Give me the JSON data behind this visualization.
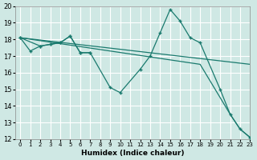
{
  "xlabel": "Humidex (Indice chaleur)",
  "xlim": [
    -0.5,
    23
  ],
  "ylim": [
    12,
    20
  ],
  "yticks": [
    12,
    13,
    14,
    15,
    16,
    17,
    18,
    19,
    20
  ],
  "xticks": [
    0,
    1,
    2,
    3,
    4,
    5,
    6,
    7,
    8,
    9,
    10,
    11,
    12,
    13,
    14,
    15,
    16,
    17,
    18,
    19,
    20,
    21,
    22,
    23
  ],
  "bg_color": "#cfe8e4",
  "grid_color": "#ffffff",
  "line_color": "#1a7a6e",
  "line1_x": [
    0,
    1,
    2,
    3,
    4,
    5,
    6,
    7
  ],
  "line1_y": [
    18.1,
    17.3,
    17.6,
    17.7,
    17.8,
    18.2,
    17.2,
    17.2
  ],
  "line2_x": [
    0,
    2,
    3,
    4,
    5,
    6,
    7,
    9,
    10,
    12,
    13,
    14,
    15,
    16,
    17,
    18,
    20,
    21,
    22,
    23
  ],
  "line2_y": [
    18.1,
    17.6,
    17.7,
    17.8,
    18.2,
    17.2,
    17.2,
    15.1,
    14.8,
    16.2,
    17.0,
    18.4,
    19.8,
    19.1,
    18.1,
    17.8,
    15.0,
    13.5,
    12.6,
    12.1
  ],
  "line3_x": [
    0,
    23
  ],
  "line3_y": [
    18.1,
    16.5
  ],
  "line4_x": [
    0,
    18,
    21,
    22,
    23
  ],
  "line4_y": [
    18.1,
    16.5,
    13.5,
    12.6,
    12.1
  ]
}
